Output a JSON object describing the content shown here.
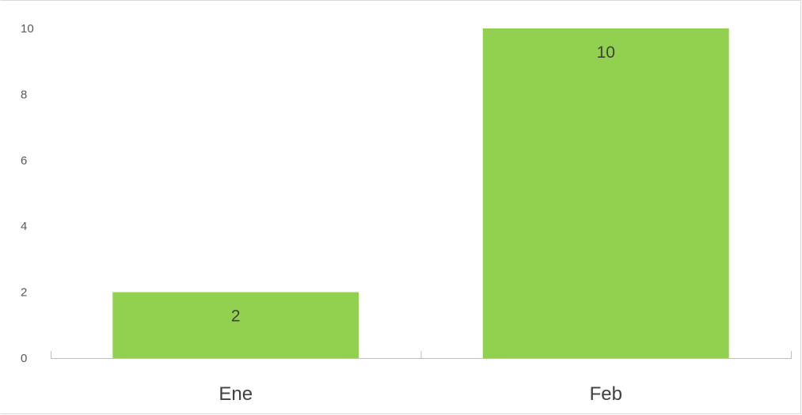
{
  "chart_data": {
    "type": "bar",
    "categories": [
      "Ene",
      "Feb"
    ],
    "values": [
      2,
      10
    ],
    "data_labels": [
      "2",
      "10"
    ],
    "title": "",
    "xlabel": "",
    "ylabel": "",
    "ylim": [
      0,
      10
    ],
    "yticks": [
      0,
      2,
      4,
      6,
      8,
      10
    ],
    "grid": false,
    "legend": "none",
    "bar_color": "#92d050",
    "axis_color": "#bfbfbf"
  }
}
